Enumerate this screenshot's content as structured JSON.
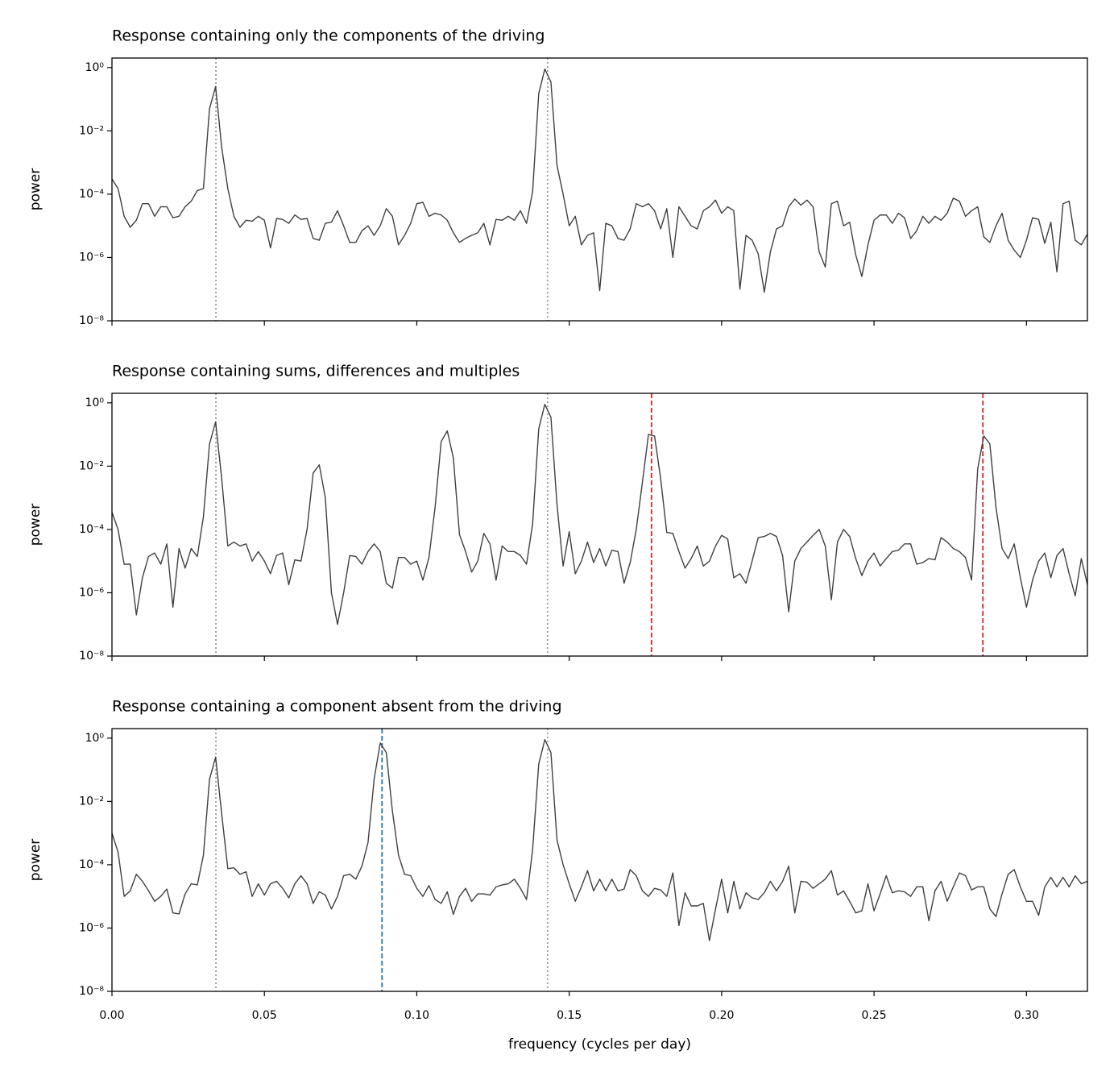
{
  "chart_data": [
    {
      "type": "line",
      "title": "Response containing only the components of the driving",
      "ylabel": "power",
      "yscale": "log",
      "color": "#404040",
      "xlim": [
        0,
        0.32
      ],
      "ylim": [
        1e-08,
        2
      ],
      "xticks": [
        0,
        0.05,
        0.1,
        0.15,
        0.2,
        0.25,
        0.3
      ],
      "yticks": [
        {
          "value": 1e-08,
          "label": "10⁻⁸"
        },
        {
          "value": 1e-06,
          "label": "10⁻⁶"
        },
        {
          "value": 0.0001,
          "label": "10⁻⁴"
        },
        {
          "value": 0.01,
          "label": "10⁻²"
        },
        {
          "value": 1,
          "label": "10⁰"
        }
      ],
      "vlines": [
        {
          "x": 0.0341,
          "color": "#999999",
          "style": "dotted"
        },
        {
          "x": 0.1429,
          "color": "#999999",
          "style": "dotted"
        }
      ],
      "x": [
        0,
        0.002,
        0.004,
        0.006,
        0.008,
        0.01,
        0.012,
        0.014,
        0.016,
        0.018,
        0.02,
        0.022,
        0.024,
        0.026,
        0.028,
        0.03,
        0.032,
        0.034,
        0.036,
        0.038,
        0.04,
        0.042,
        0.044,
        0.046,
        0.048,
        0.05,
        0.052,
        0.054,
        0.056,
        0.058,
        0.06,
        0.062,
        0.064,
        0.066,
        0.068,
        0.07,
        0.072,
        0.074,
        0.076,
        0.078,
        0.08,
        0.082,
        0.084,
        0.086,
        0.088,
        0.09,
        0.092,
        0.094,
        0.096,
        0.098,
        0.1,
        0.102,
        0.104,
        0.106,
        0.108,
        0.11,
        0.112,
        0.114,
        0.116,
        0.118,
        0.12,
        0.122,
        0.124,
        0.126,
        0.128,
        0.13,
        0.132,
        0.134,
        0.136,
        0.138,
        0.14,
        0.142,
        0.144,
        0.146,
        0.148,
        0.15,
        0.152,
        0.154,
        0.156,
        0.158,
        0.16,
        0.162,
        0.164,
        0.166,
        0.168,
        0.17,
        0.172,
        0.174,
        0.176,
        0.178,
        0.18,
        0.182,
        0.184,
        0.186,
        0.188,
        0.19,
        0.192,
        0.194,
        0.196,
        0.198,
        0.2,
        0.202,
        0.204,
        0.206,
        0.208,
        0.21,
        0.212,
        0.214,
        0.216,
        0.218,
        0.22,
        0.222,
        0.224,
        0.226,
        0.228,
        0.23,
        0.232,
        0.234,
        0.236,
        0.238,
        0.24,
        0.242,
        0.244,
        0.246,
        0.248,
        0.25,
        0.252,
        0.254,
        0.256,
        0.258,
        0.26,
        0.262,
        0.264,
        0.266,
        0.268,
        0.27,
        0.272,
        0.274,
        0.276,
        0.278,
        0.28,
        0.282,
        0.284,
        0.286,
        0.288,
        0.29,
        0.292,
        0.294,
        0.296,
        0.298,
        0.3,
        0.302,
        0.304,
        0.306,
        0.308,
        0.31,
        0.312,
        0.314,
        0.316,
        0.318,
        0.32
      ],
      "values": [
        0.0003,
        0.00015,
        2e-05,
        9e-06,
        1.5e-05,
        5e-05,
        5e-05,
        2e-05,
        4e-05,
        4e-05,
        1.8e-05,
        2e-05,
        4e-05,
        6e-05,
        0.00013,
        0.00015,
        0.05,
        0.25,
        0.003,
        0.00015,
        2e-05,
        9e-06,
        1.5e-05,
        1.4e-05,
        2e-05,
        1.5e-05,
        2e-06,
        1.7e-05,
        1.6e-05,
        1.2e-05,
        2.2e-05,
        1.6e-05,
        1.7e-05,
        4e-06,
        3.5e-06,
        1.2e-05,
        1.3e-05,
        3e-05,
        1e-05,
        3e-06,
        3e-06,
        7e-06,
        1e-05,
        5e-06,
        1e-05,
        3.5e-05,
        2e-05,
        2.5e-06,
        5e-06,
        1.2e-05,
        5e-05,
        5.5e-05,
        2e-05,
        2.5e-05,
        2.2e-05,
        1.5e-05,
        6e-06,
        3e-06,
        4e-06,
        5e-06,
        6e-06,
        1.2e-05,
        2.5e-06,
        1.6e-05,
        1.5e-05,
        2e-05,
        1.5e-05,
        3e-05,
        1.2e-05,
        0.00012,
        0.15,
        0.9,
        0.35,
        0.0008,
        0.0001,
        1e-05,
        2e-05,
        2.5e-06,
        5e-06,
        6e-06,
        9e-08,
        1.2e-05,
        1e-05,
        4e-06,
        3.5e-06,
        8e-06,
        5e-05,
        4e-05,
        5e-05,
        3e-05,
        8e-06,
        3.5e-05,
        1e-06,
        4e-05,
        2e-05,
        1e-05,
        8e-06,
        3e-05,
        4e-05,
        6.5e-05,
        2.5e-05,
        4e-05,
        3e-05,
        1e-07,
        5e-06,
        3.5e-06,
        1.3e-06,
        8e-08,
        1.5e-06,
        8e-06,
        1e-05,
        4e-05,
        7e-05,
        4.5e-05,
        6.5e-05,
        4e-05,
        1.5e-06,
        5e-07,
        5e-05,
        6e-05,
        1e-05,
        1.3e-05,
        1.2e-06,
        2.5e-07,
        2.5e-06,
        1.5e-05,
        2.2e-05,
        2.2e-05,
        1.2e-05,
        2.5e-05,
        1.8e-05,
        4e-06,
        7e-06,
        2e-05,
        1.2e-05,
        2e-05,
        1.5e-05,
        2.5e-05,
        7.5e-05,
        6e-05,
        2e-05,
        3e-05,
        4e-05,
        4.5e-06,
        3e-06,
        1e-05,
        2.5e-05,
        3.5e-06,
        1.7e-06,
        1e-06,
        3.5e-06,
        1.8e-05,
        1.6e-05,
        2.8e-06,
        1.3e-05,
        3.5e-07,
        5e-05,
        6e-05,
        3.5e-06,
        2.5e-06,
        5.5e-06
      ]
    },
    {
      "type": "line",
      "title": "Response containing sums, differences and multiples",
      "ylabel": "power",
      "yscale": "log",
      "color": "#404040",
      "xlim": [
        0,
        0.32
      ],
      "ylim": [
        1e-08,
        2
      ],
      "xticks": [
        0,
        0.05,
        0.1,
        0.15,
        0.2,
        0.25,
        0.3
      ],
      "yticks": [
        {
          "value": 1e-08,
          "label": "10⁻⁸"
        },
        {
          "value": 1e-06,
          "label": "10⁻⁶"
        },
        {
          "value": 0.0001,
          "label": "10⁻⁴"
        },
        {
          "value": 0.01,
          "label": "10⁻²"
        },
        {
          "value": 1,
          "label": "10⁰"
        }
      ],
      "vlines": [
        {
          "x": 0.0341,
          "color": "#999999",
          "style": "dotted"
        },
        {
          "x": 0.1429,
          "color": "#999999",
          "style": "dotted"
        },
        {
          "x": 0.177,
          "color": "#d62728",
          "style": "dashed"
        },
        {
          "x": 0.2857,
          "color": "#d62728",
          "style": "dashed"
        }
      ],
      "x": [
        0,
        0.002,
        0.004,
        0.006,
        0.008,
        0.01,
        0.012,
        0.014,
        0.016,
        0.018,
        0.02,
        0.022,
        0.024,
        0.026,
        0.028,
        0.03,
        0.032,
        0.034,
        0.036,
        0.038,
        0.04,
        0.042,
        0.044,
        0.046,
        0.048,
        0.05,
        0.052,
        0.054,
        0.056,
        0.058,
        0.06,
        0.062,
        0.064,
        0.066,
        0.068,
        0.07,
        0.072,
        0.074,
        0.076,
        0.078,
        0.08,
        0.082,
        0.084,
        0.086,
        0.088,
        0.09,
        0.092,
        0.094,
        0.096,
        0.098,
        0.1,
        0.102,
        0.104,
        0.106,
        0.108,
        0.11,
        0.112,
        0.114,
        0.116,
        0.118,
        0.12,
        0.122,
        0.124,
        0.126,
        0.128,
        0.13,
        0.132,
        0.134,
        0.136,
        0.138,
        0.14,
        0.142,
        0.144,
        0.146,
        0.148,
        0.15,
        0.152,
        0.154,
        0.156,
        0.158,
        0.16,
        0.162,
        0.164,
        0.166,
        0.168,
        0.17,
        0.172,
        0.174,
        0.176,
        0.178,
        0.18,
        0.182,
        0.184,
        0.186,
        0.188,
        0.19,
        0.192,
        0.194,
        0.196,
        0.198,
        0.2,
        0.202,
        0.204,
        0.206,
        0.208,
        0.21,
        0.212,
        0.214,
        0.216,
        0.218,
        0.22,
        0.222,
        0.224,
        0.226,
        0.228,
        0.23,
        0.232,
        0.234,
        0.236,
        0.238,
        0.24,
        0.242,
        0.244,
        0.246,
        0.248,
        0.25,
        0.252,
        0.254,
        0.256,
        0.258,
        0.26,
        0.262,
        0.264,
        0.266,
        0.268,
        0.27,
        0.272,
        0.274,
        0.276,
        0.278,
        0.28,
        0.282,
        0.284,
        0.286,
        0.288,
        0.29,
        0.292,
        0.294,
        0.296,
        0.298,
        0.3,
        0.302,
        0.304,
        0.306,
        0.308,
        0.31,
        0.312,
        0.314,
        0.316,
        0.318,
        0.32
      ],
      "values": [
        0.00035,
        0.0001,
        8e-06,
        8e-06,
        2e-07,
        3e-06,
        1.4e-05,
        1.8e-05,
        8e-06,
        3.5e-05,
        3.5e-07,
        2.5e-05,
        6e-06,
        2.5e-05,
        1.4e-05,
        0.00025,
        0.05,
        0.25,
        0.004,
        3e-05,
        4e-05,
        3e-05,
        3.5e-05,
        1e-05,
        2e-05,
        1e-05,
        4e-06,
        1.5e-05,
        1.8e-05,
        1.8e-06,
        1.1e-05,
        1e-05,
        0.0001,
        0.006,
        0.011,
        0.001,
        1e-06,
        1e-07,
        1e-06,
        1.5e-05,
        1.4e-05,
        8e-06,
        2e-05,
        3.5e-05,
        2e-05,
        2e-06,
        1.4e-06,
        1.3e-05,
        1.3e-05,
        8e-06,
        1e-05,
        2.5e-06,
        1.3e-05,
        0.0005,
        0.06,
        0.13,
        0.018,
        7e-05,
        2e-05,
        4.5e-06,
        1e-05,
        7.5e-05,
        3.5e-05,
        2.5e-06,
        3e-05,
        2e-05,
        2e-05,
        1.5e-05,
        8e-06,
        0.00015,
        0.15,
        0.9,
        0.35,
        0.0006,
        7e-06,
        8.5e-05,
        4e-06,
        1e-05,
        4e-05,
        9e-06,
        2.5e-05,
        7e-06,
        2.2e-05,
        2e-05,
        2e-06,
        9e-06,
        0.0001,
        0.003,
        0.1,
        0.09,
        0.004,
        8e-05,
        7.5e-05,
        2e-05,
        6e-06,
        1.2e-05,
        3e-05,
        7e-06,
        1e-05,
        3e-05,
        6.5e-05,
        5e-05,
        3e-06,
        4e-06,
        2e-06,
        1e-05,
        5.5e-05,
        6e-05,
        7.5e-05,
        6e-05,
        1.5e-05,
        2.5e-07,
        1e-05,
        2.5e-05,
        4e-05,
        6.5e-05,
        0.0001,
        3e-05,
        6e-07,
        4e-05,
        0.0001,
        6e-05,
        1.2e-05,
        3.5e-06,
        1e-05,
        1.8e-05,
        7e-06,
        1.2e-05,
        2e-05,
        2.2e-05,
        3.5e-05,
        3.5e-05,
        8e-06,
        9e-06,
        1.2e-05,
        1.1e-05,
        5.5e-05,
        4e-05,
        2.5e-05,
        2e-05,
        1.3e-05,
        2.5e-06,
        0.008,
        0.09,
        0.05,
        0.0005,
        2.5e-05,
        1.2e-05,
        3.5e-05,
        3e-06,
        3.5e-07,
        2.5e-06,
        1e-05,
        1.8e-05,
        3e-06,
        1.5e-05,
        2.5e-05,
        4e-06,
        8e-07,
        1.2e-05,
        1.8e-06
      ]
    },
    {
      "type": "line",
      "title": "Response containing a component absent from the driving",
      "ylabel": "power",
      "xlabel": "frequency (cycles per day)",
      "yscale": "log",
      "color": "#404040",
      "xlim": [
        0,
        0.32
      ],
      "ylim": [
        1e-08,
        2
      ],
      "xticks": [
        {
          "value": 0,
          "label": "0.00"
        },
        {
          "value": 0.05,
          "label": "0.05"
        },
        {
          "value": 0.1,
          "label": "0.10"
        },
        {
          "value": 0.15,
          "label": "0.15"
        },
        {
          "value": 0.2,
          "label": "0.20"
        },
        {
          "value": 0.25,
          "label": "0.25"
        },
        {
          "value": 0.3,
          "label": "0.30"
        }
      ],
      "yticks": [
        {
          "value": 1e-08,
          "label": "10⁻⁸"
        },
        {
          "value": 1e-06,
          "label": "10⁻⁶"
        },
        {
          "value": 0.0001,
          "label": "10⁻⁴"
        },
        {
          "value": 0.01,
          "label": "10⁻²"
        },
        {
          "value": 1,
          "label": "10⁰"
        }
      ],
      "vlines": [
        {
          "x": 0.0341,
          "color": "#999999",
          "style": "dotted"
        },
        {
          "x": 0.1429,
          "color": "#999999",
          "style": "dotted"
        },
        {
          "x": 0.0886,
          "color": "#1f77b4",
          "style": "dashed"
        }
      ],
      "x": [
        0,
        0.002,
        0.004,
        0.006,
        0.008,
        0.01,
        0.012,
        0.014,
        0.016,
        0.018,
        0.02,
        0.022,
        0.024,
        0.026,
        0.028,
        0.03,
        0.032,
        0.034,
        0.036,
        0.038,
        0.04,
        0.042,
        0.044,
        0.046,
        0.048,
        0.05,
        0.052,
        0.054,
        0.056,
        0.058,
        0.06,
        0.062,
        0.064,
        0.066,
        0.068,
        0.07,
        0.072,
        0.074,
        0.076,
        0.078,
        0.08,
        0.082,
        0.084,
        0.086,
        0.088,
        0.09,
        0.092,
        0.094,
        0.096,
        0.098,
        0.1,
        0.102,
        0.104,
        0.106,
        0.108,
        0.11,
        0.112,
        0.114,
        0.116,
        0.118,
        0.12,
        0.122,
        0.124,
        0.126,
        0.128,
        0.13,
        0.132,
        0.134,
        0.136,
        0.138,
        0.14,
        0.142,
        0.144,
        0.146,
        0.148,
        0.15,
        0.152,
        0.154,
        0.156,
        0.158,
        0.16,
        0.162,
        0.164,
        0.166,
        0.168,
        0.17,
        0.172,
        0.174,
        0.176,
        0.178,
        0.18,
        0.182,
        0.184,
        0.186,
        0.188,
        0.19,
        0.192,
        0.194,
        0.196,
        0.198,
        0.2,
        0.202,
        0.204,
        0.206,
        0.208,
        0.21,
        0.212,
        0.214,
        0.216,
        0.218,
        0.22,
        0.222,
        0.224,
        0.226,
        0.228,
        0.23,
        0.232,
        0.234,
        0.236,
        0.238,
        0.24,
        0.242,
        0.244,
        0.246,
        0.248,
        0.25,
        0.252,
        0.254,
        0.256,
        0.258,
        0.26,
        0.262,
        0.264,
        0.266,
        0.268,
        0.27,
        0.272,
        0.274,
        0.276,
        0.278,
        0.28,
        0.282,
        0.284,
        0.286,
        0.288,
        0.29,
        0.292,
        0.294,
        0.296,
        0.298,
        0.3,
        0.302,
        0.304,
        0.306,
        0.308,
        0.31,
        0.312,
        0.314,
        0.316,
        0.318,
        0.32
      ],
      "values": [
        0.001,
        0.00025,
        1e-05,
        1.5e-05,
        5e-05,
        3e-05,
        1.5e-05,
        7e-06,
        1e-05,
        1.7e-05,
        3e-06,
        2.8e-06,
        1.2e-05,
        2.5e-05,
        2.3e-05,
        0.0002,
        0.05,
        0.25,
        0.004,
        7.5e-05,
        8e-05,
        5e-05,
        6e-05,
        1e-05,
        2.5e-05,
        1.1e-05,
        2.5e-05,
        3e-05,
        1.8e-05,
        9e-06,
        2.5e-05,
        4.5e-05,
        2.5e-05,
        6e-06,
        1.4e-05,
        1.1e-05,
        4e-06,
        1e-05,
        4.5e-05,
        5e-05,
        3.5e-05,
        9e-05,
        0.0005,
        0.05,
        0.7,
        0.35,
        0.005,
        0.0002,
        5e-05,
        4.5e-05,
        1.8e-05,
        1e-05,
        2.2e-05,
        8e-06,
        6e-06,
        1.4e-05,
        2.7e-06,
        1e-05,
        1.8e-05,
        7e-06,
        1.2e-05,
        1.2e-05,
        1.1e-05,
        2e-05,
        2.3e-05,
        2.5e-05,
        3.5e-05,
        1.8e-05,
        8e-06,
        0.0003,
        0.15,
        0.9,
        0.35,
        0.0006,
        0.0001,
        2.5e-05,
        7e-06,
        2e-05,
        6.5e-05,
        1.5e-05,
        3.5e-05,
        1.5e-05,
        3.5e-05,
        1.5e-05,
        1.7e-05,
        7e-05,
        4.5e-05,
        1.5e-05,
        1e-05,
        1.8e-05,
        1.6e-05,
        1e-05,
        5.5e-05,
        1.2e-06,
        1.3e-05,
        5e-06,
        5e-06,
        6e-06,
        4e-07,
        4e-06,
        3.5e-05,
        3e-06,
        3e-05,
        4e-06,
        1.3e-05,
        9e-06,
        8e-06,
        1.3e-05,
        3e-05,
        1.5e-05,
        3e-05,
        9e-05,
        3e-06,
        3e-05,
        2.8e-05,
        1.8e-05,
        2.5e-05,
        3.5e-05,
        6.5e-05,
        1.1e-05,
        1.5e-05,
        7e-06,
        3e-06,
        3.5e-06,
        2.5e-05,
        3.5e-06,
        1.2e-05,
        4.5e-05,
        1.3e-05,
        1.5e-05,
        1.4e-05,
        1e-05,
        2e-05,
        2e-05,
        1.7e-06,
        1.5e-05,
        3e-05,
        7e-06,
        2e-05,
        5.5e-05,
        4.5e-05,
        1.6e-05,
        2e-05,
        2e-05,
        4e-06,
        2.3e-06,
        1.2e-05,
        5e-05,
        7e-05,
        2e-05,
        7e-06,
        7e-06,
        2.5e-06,
        2e-05,
        4e-05,
        2e-05,
        4e-05,
        2e-05,
        4.5e-05,
        2.5e-05,
        3e-05
      ]
    }
  ]
}
